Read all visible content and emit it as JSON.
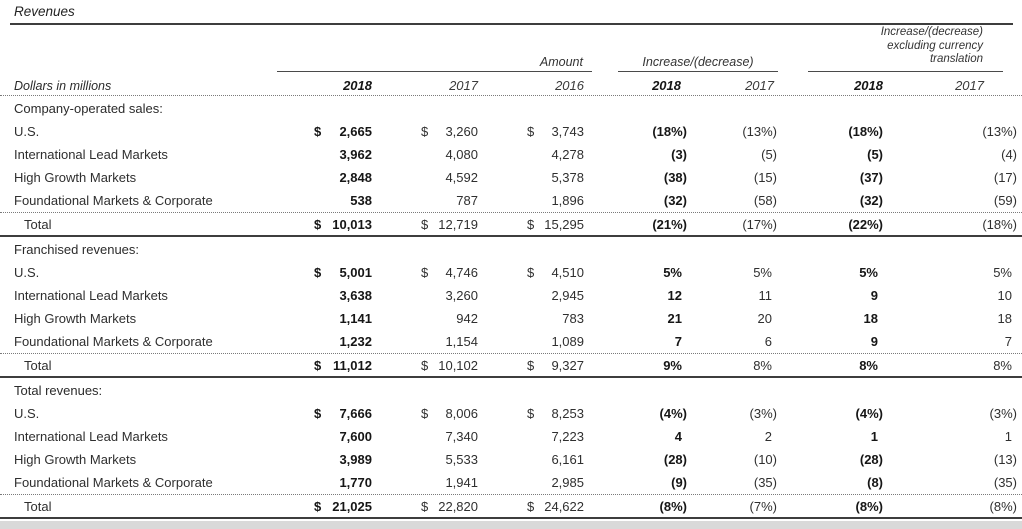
{
  "title": "Revenues",
  "header": {
    "dollars_note": "Dollars in millions",
    "groups": [
      {
        "label": "Amount"
      },
      {
        "label": "Increase/(decrease)"
      },
      {
        "lines": [
          "Increase/(decrease)",
          "excluding currency",
          "translation"
        ]
      }
    ],
    "years": [
      "2018",
      "2017",
      "2016",
      "2018",
      "2017",
      "2018",
      "2017"
    ]
  },
  "sections": [
    {
      "heading": "Company-operated sales:",
      "rows": [
        {
          "label": "U.S.",
          "cur18": "$",
          "a18": "2,665",
          "cur17": "$",
          "a17": "3,260",
          "cur16": "$",
          "a16": "3,743",
          "p18": "(18%)",
          "p17": "(13%)",
          "x18": "(18%)",
          "x17": "(13%)"
        },
        {
          "label": "International Lead Markets",
          "cur18": "",
          "a18": "3,962",
          "cur17": "",
          "a17": "4,080",
          "cur16": "",
          "a16": "4,278",
          "p18": "(3)",
          "p17": "(5)",
          "x18": "(5)",
          "x17": "(4)"
        },
        {
          "label": "High Growth Markets",
          "cur18": "",
          "a18": "2,848",
          "cur17": "",
          "a17": "4,592",
          "cur16": "",
          "a16": "5,378",
          "p18": "(38)",
          "p17": "(15)",
          "x18": "(37)",
          "x17": "(17)"
        },
        {
          "label": "Foundational Markets & Corporate",
          "cur18": "",
          "a18": "538",
          "cur17": "",
          "a17": "787",
          "cur16": "",
          "a16": "1,896",
          "p18": "(32)",
          "p17": "(58)",
          "x18": "(32)",
          "x17": "(59)"
        }
      ],
      "total": {
        "label": "Total",
        "cur18": "$",
        "a18": "10,013",
        "cur17": "$",
        "a17": "12,719",
        "cur16": "$",
        "a16": "15,295",
        "p18": "(21%)",
        "p17": "(17%)",
        "x18": "(22%)",
        "x17": "(18%)"
      }
    },
    {
      "heading": "Franchised revenues:",
      "rows": [
        {
          "label": "U.S.",
          "cur18": "$",
          "a18": "5,001",
          "cur17": "$",
          "a17": "4,746",
          "cur16": "$",
          "a16": "4,510",
          "p18": "5%",
          "p17": "5%",
          "x18": "5%",
          "x17": "5%"
        },
        {
          "label": "International Lead Markets",
          "cur18": "",
          "a18": "3,638",
          "cur17": "",
          "a17": "3,260",
          "cur16": "",
          "a16": "2,945",
          "p18": "12",
          "p17": "11",
          "x18": "9",
          "x17": "10"
        },
        {
          "label": "High Growth Markets",
          "cur18": "",
          "a18": "1,141",
          "cur17": "",
          "a17": "942",
          "cur16": "",
          "a16": "783",
          "p18": "21",
          "p17": "20",
          "x18": "18",
          "x17": "18"
        },
        {
          "label": "Foundational Markets & Corporate",
          "cur18": "",
          "a18": "1,232",
          "cur17": "",
          "a17": "1,154",
          "cur16": "",
          "a16": "1,089",
          "p18": "7",
          "p17": "6",
          "x18": "9",
          "x17": "7"
        }
      ],
      "total": {
        "label": "Total",
        "cur18": "$",
        "a18": "11,012",
        "cur17": "$",
        "a17": "10,102",
        "cur16": "$",
        "a16": "9,327",
        "p18": "9%",
        "p17": "8%",
        "x18": "8%",
        "x17": "8%"
      }
    },
    {
      "heading": "Total revenues:",
      "rows": [
        {
          "label": "U.S.",
          "cur18": "$",
          "a18": "7,666",
          "cur17": "$",
          "a17": "8,006",
          "cur16": "$",
          "a16": "8,253",
          "p18": "(4%)",
          "p17": "(3%)",
          "x18": "(4%)",
          "x17": "(3%)"
        },
        {
          "label": "International Lead Markets",
          "cur18": "",
          "a18": "7,600",
          "cur17": "",
          "a17": "7,340",
          "cur16": "",
          "a16": "7,223",
          "p18": "4",
          "p17": "2",
          "x18": "1",
          "x17": "1"
        },
        {
          "label": "High Growth Markets",
          "cur18": "",
          "a18": "3,989",
          "cur17": "",
          "a17": "5,533",
          "cur16": "",
          "a16": "6,161",
          "p18": "(28)",
          "p17": "(10)",
          "x18": "(28)",
          "x17": "(13)"
        },
        {
          "label": "Foundational Markets & Corporate",
          "cur18": "",
          "a18": "1,770",
          "cur17": "",
          "a17": "1,941",
          "cur16": "",
          "a16": "2,985",
          "p18": "(9)",
          "p17": "(35)",
          "x18": "(8)",
          "x17": "(35)"
        }
      ],
      "total": {
        "label": "Total",
        "cur18": "$",
        "a18": "21,025",
        "cur17": "$",
        "a17": "22,820",
        "cur16": "$",
        "a16": "24,622",
        "p18": "(8%)",
        "p17": "(7%)",
        "x18": "(8%)",
        "x17": "(8%)"
      }
    }
  ]
}
